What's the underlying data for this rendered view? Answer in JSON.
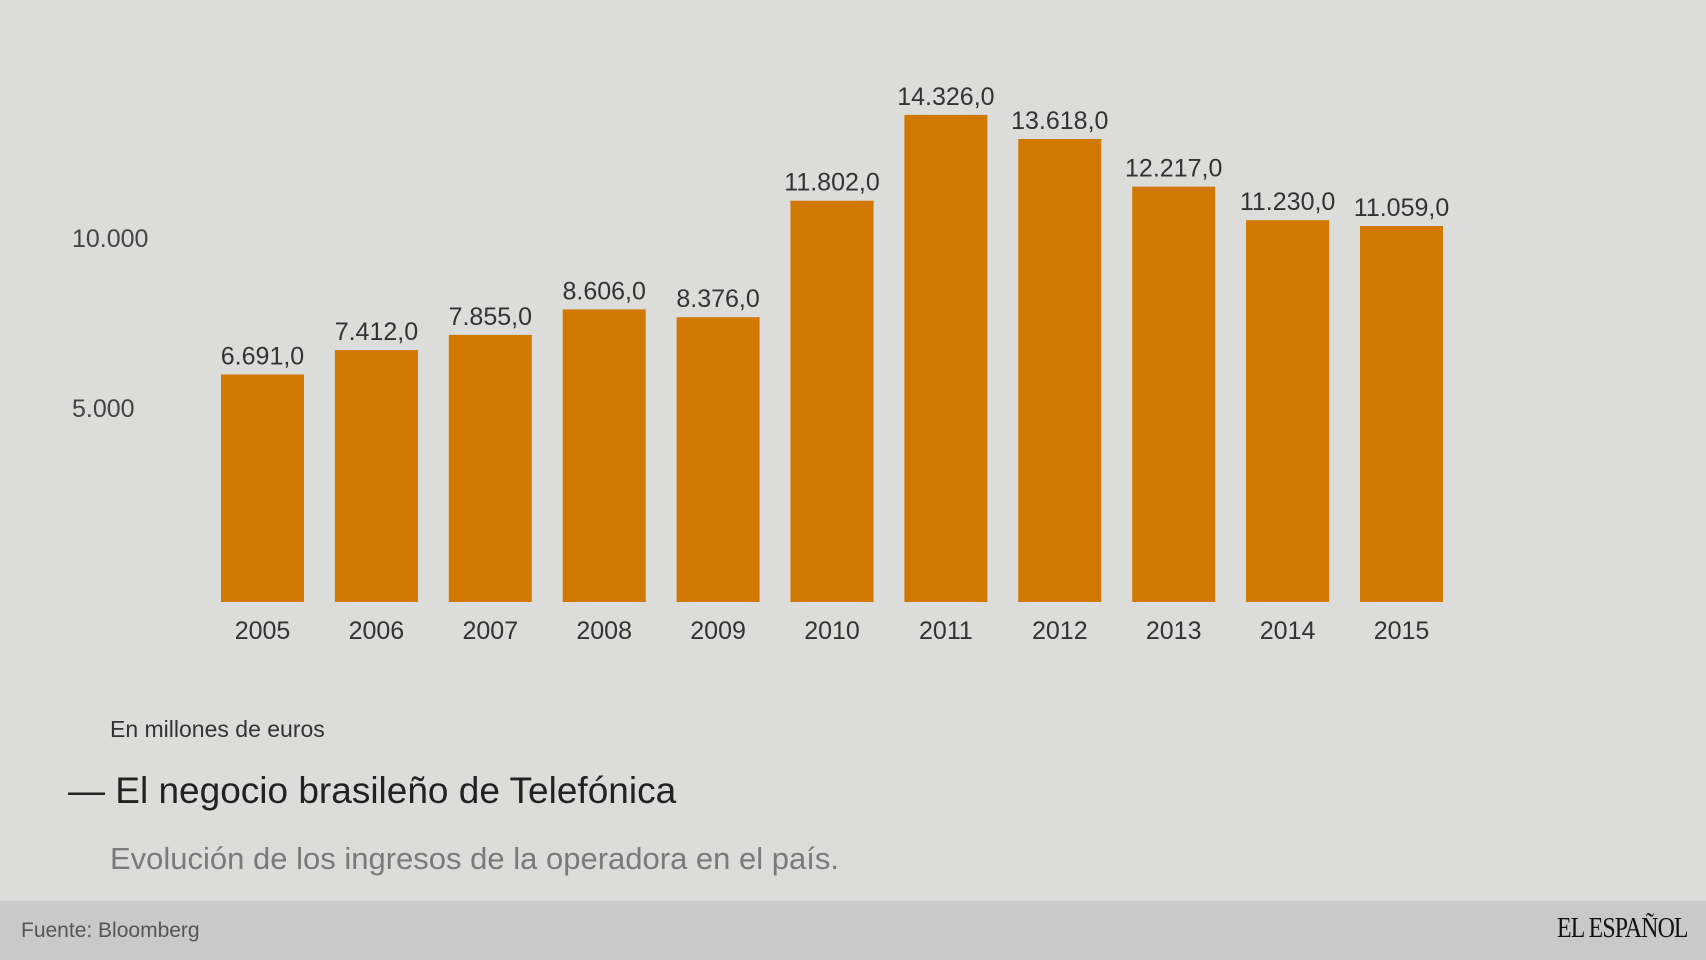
{
  "chart_data": {
    "type": "bar",
    "title": "El negocio brasileño de Telefónica",
    "subtitle": "Evolución de los ingresos de la operadora en el país.",
    "unit_note": "En millones de euros",
    "categories": [
      "2005",
      "2006",
      "2007",
      "2008",
      "2009",
      "2010",
      "2011",
      "2012",
      "2013",
      "2014",
      "2015"
    ],
    "values": [
      6691,
      7412,
      7855,
      8606,
      8376,
      11802,
      14326,
      13618,
      12217,
      11230,
      11059
    ],
    "value_labels": [
      "6.691,0",
      "7.412,0",
      "7.855,0",
      "8.606,0",
      "8.376,0",
      "11.802,0",
      "14.326,0",
      "13.618,0",
      "12.217,0",
      "11.230,0",
      "11.059,0"
    ],
    "yticks": [
      5000,
      10000
    ],
    "ytick_labels": [
      "5.000",
      "10.000"
    ],
    "ylim": [
      0,
      15000
    ],
    "grid": false,
    "bar_color": "#d07800"
  },
  "footer": {
    "source": "Fuente: Bloomberg",
    "logo": "EL ESPAÑOL"
  }
}
